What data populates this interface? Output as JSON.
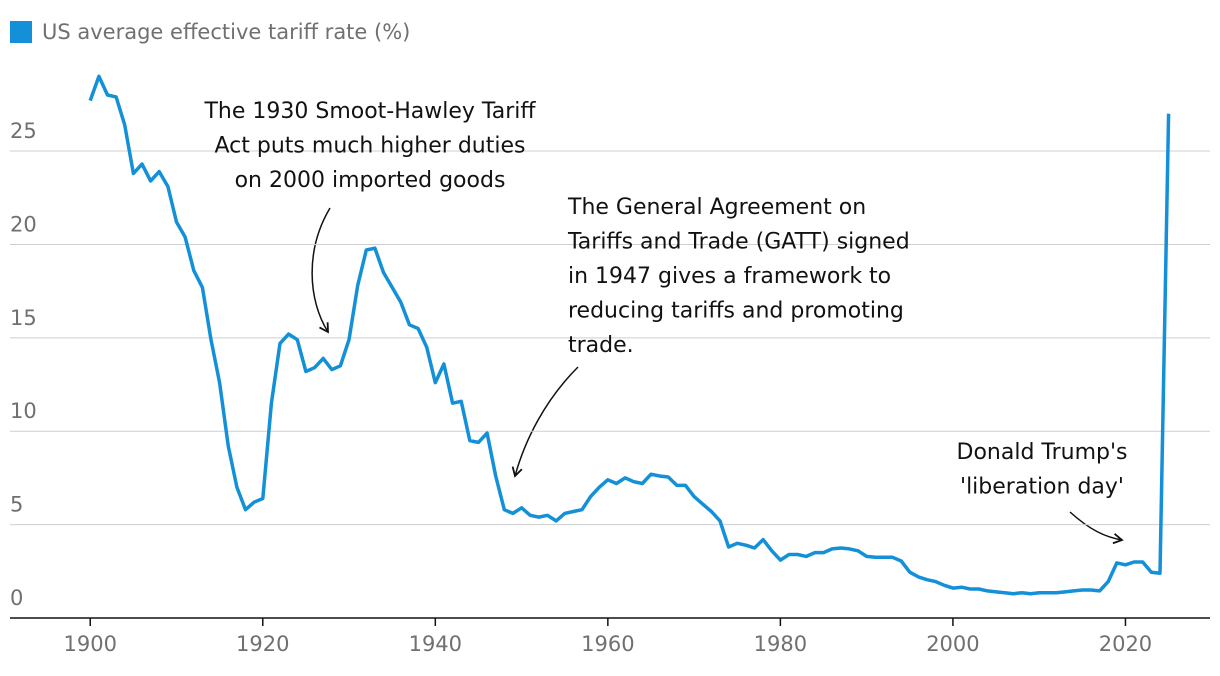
{
  "chart_data": {
    "type": "line",
    "x": [
      1900,
      1901,
      1902,
      1903,
      1904,
      1905,
      1906,
      1907,
      1908,
      1909,
      1910,
      1911,
      1912,
      1913,
      1914,
      1915,
      1916,
      1917,
      1918,
      1919,
      1920,
      1921,
      1922,
      1923,
      1924,
      1925,
      1926,
      1927,
      1928,
      1929,
      1930,
      1931,
      1932,
      1933,
      1934,
      1935,
      1936,
      1937,
      1938,
      1939,
      1940,
      1941,
      1942,
      1943,
      1944,
      1945,
      1946,
      1947,
      1948,
      1949,
      1950,
      1951,
      1952,
      1953,
      1954,
      1955,
      1956,
      1957,
      1958,
      1959,
      1960,
      1961,
      1962,
      1963,
      1964,
      1965,
      1966,
      1967,
      1968,
      1969,
      1970,
      1971,
      1972,
      1973,
      1974,
      1975,
      1976,
      1977,
      1978,
      1979,
      1980,
      1981,
      1982,
      1983,
      1984,
      1985,
      1986,
      1987,
      1988,
      1989,
      1990,
      1991,
      1992,
      1993,
      1994,
      1995,
      1996,
      1997,
      1998,
      1999,
      2000,
      2001,
      2002,
      2003,
      2004,
      2005,
      2006,
      2007,
      2008,
      2009,
      2010,
      2011,
      2012,
      2013,
      2014,
      2015,
      2016,
      2017,
      2018,
      2019,
      2020,
      2021,
      2022,
      2023,
      2024,
      2025
    ],
    "series": [
      {
        "name": "US average effective tariff rate (%)",
        "color": "#1390d8",
        "values": [
          27.7,
          29.0,
          28.0,
          27.9,
          26.4,
          23.8,
          24.3,
          23.4,
          23.9,
          23.1,
          21.2,
          20.4,
          18.6,
          17.7,
          14.9,
          12.6,
          9.2,
          7.0,
          5.8,
          6.2,
          6.4,
          11.5,
          14.7,
          15.2,
          14.9,
          13.2,
          13.4,
          13.9,
          13.3,
          13.5,
          14.9,
          17.8,
          19.7,
          19.8,
          18.5,
          17.7,
          16.9,
          15.7,
          15.5,
          14.5,
          12.6,
          13.6,
          11.5,
          11.6,
          9.5,
          9.4,
          9.9,
          7.6,
          5.8,
          5.6,
          5.9,
          5.5,
          5.4,
          5.5,
          5.2,
          5.6,
          5.7,
          5.8,
          6.5,
          7.0,
          7.4,
          7.2,
          7.5,
          7.3,
          7.2,
          7.7,
          7.6,
          7.55,
          7.1,
          7.1,
          6.5,
          6.1,
          5.7,
          5.2,
          3.8,
          4.0,
          3.9,
          3.75,
          4.2,
          3.6,
          3.1,
          3.4,
          3.4,
          3.3,
          3.5,
          3.5,
          3.7,
          3.75,
          3.7,
          3.6,
          3.3,
          3.25,
          3.25,
          3.25,
          3.05,
          2.45,
          2.2,
          2.05,
          1.95,
          1.75,
          1.6,
          1.65,
          1.55,
          1.55,
          1.45,
          1.4,
          1.35,
          1.3,
          1.35,
          1.3,
          1.35,
          1.35,
          1.35,
          1.4,
          1.45,
          1.5,
          1.5,
          1.45,
          1.95,
          2.95,
          2.85,
          3.0,
          3.0,
          2.45,
          2.4,
          27.0
        ]
      }
    ],
    "xlim": [
      1890.7,
      2029.8
    ],
    "ylim": [
      0,
      29.5
    ],
    "xticks": [
      1900,
      1920,
      1940,
      1960,
      1980,
      2000,
      2020
    ],
    "yticks": [
      0,
      5,
      10,
      15,
      20,
      25
    ],
    "grid": true,
    "annotations": [
      {
        "lines": [
          "The 1930 Smoot-Hawley Tariff",
          "Act puts much higher duties",
          "on 2000 imported goods"
        ]
      },
      {
        "lines": [
          "The General Agreement on",
          "Tariffs and Trade (GATT) signed",
          "in 1947 gives a framework to",
          "reducing tariffs and promoting",
          "trade."
        ]
      },
      {
        "lines": [
          "Donald Trump's",
          "'liberation day'"
        ]
      }
    ]
  }
}
